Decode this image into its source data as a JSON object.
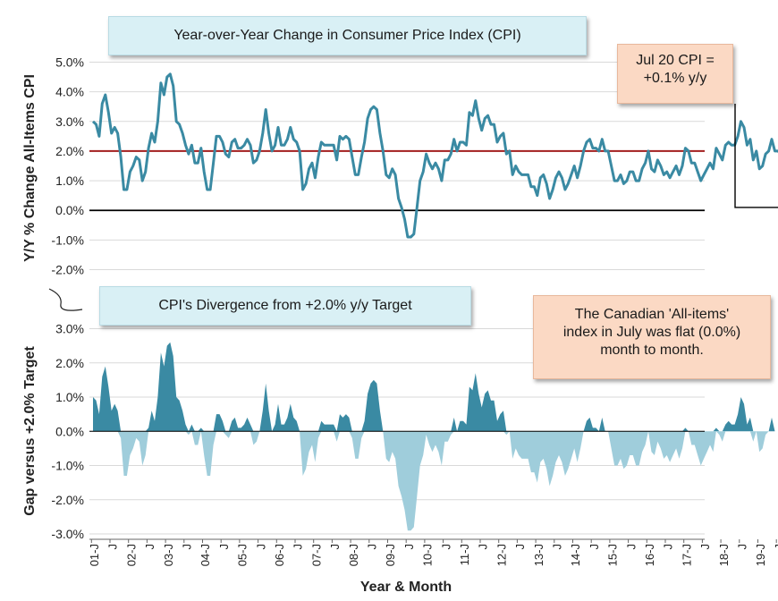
{
  "titles": {
    "top": "Year-over-Year Change in Consumer Price Index (CPI)",
    "bottom": "CPI's Divergence from +2.0% y/y Target"
  },
  "annotations": {
    "jul_line1": "Jul 20 CPI =",
    "jul_line2": "+0.1% y/y",
    "canada_line1": "The Canadian 'All-items'",
    "canada_line2": "index in July was flat (0.0%)",
    "canada_line3": "month to month."
  },
  "colors": {
    "cpi_line": "#3a8aa3",
    "target_line": "#a31f1f",
    "zero_line": "#000000",
    "gap_positive": "#3a8aa3",
    "gap_negative": "#9fcddb",
    "grid": "#d9d9d9"
  },
  "chart_data": [
    {
      "type": "line",
      "title": "Year-over-Year Change in Consumer Price Index (CPI)",
      "ylabel": "Y/Y % Change All-Items CPI",
      "xlabel": "",
      "ylim": [
        -2.0,
        5.0
      ],
      "yticks": [
        "5.0%",
        "4.0%",
        "3.0%",
        "2.0%",
        "1.0%",
        "0.0%",
        "-1.0%",
        "-2.0%"
      ],
      "grid": "horizontal",
      "reference_lines": [
        {
          "value": 2.0,
          "color": "#a31f1f"
        },
        {
          "value": 0.0,
          "color": "#000000"
        }
      ],
      "x_start": "2001-01",
      "x_end": "2020-07",
      "series": [
        {
          "values": [
            3.0,
            2.9,
            2.5,
            3.6,
            3.9,
            3.3,
            2.6,
            2.8,
            2.6,
            1.8,
            0.7,
            0.7,
            1.3,
            1.5,
            1.8,
            1.7,
            1.0,
            1.3,
            2.1,
            2.6,
            2.3,
            3.0,
            4.3,
            3.9,
            4.5,
            4.6,
            4.2,
            3.0,
            2.9,
            2.6,
            2.2,
            1.9,
            2.2,
            1.6,
            1.6,
            2.1,
            1.3,
            0.7,
            0.7,
            1.6,
            2.5,
            2.5,
            2.3,
            1.9,
            1.8,
            2.3,
            2.4,
            2.1,
            2.1,
            2.2,
            2.4,
            2.2,
            1.6,
            1.7,
            2.0,
            2.6,
            3.4,
            2.6,
            2.0,
            2.2,
            2.8,
            2.2,
            2.2,
            2.4,
            2.8,
            2.4,
            2.3,
            2.0,
            0.7,
            0.9,
            1.4,
            1.6,
            1.1,
            1.8,
            2.3,
            2.2,
            2.2,
            2.2,
            2.2,
            1.7,
            2.5,
            2.4,
            2.5,
            2.4,
            1.8,
            1.2,
            1.2,
            1.8,
            2.3,
            3.1,
            3.4,
            3.5,
            3.4,
            2.6,
            2.0,
            1.2,
            1.1,
            1.4,
            1.2,
            0.4,
            0.1,
            -0.3,
            -0.9,
            -0.9,
            -0.8,
            0.1,
            1.0,
            1.3,
            1.9,
            1.6,
            1.4,
            1.6,
            1.4,
            1.0,
            1.7,
            1.7,
            1.9,
            2.4,
            2.0,
            2.3,
            2.3,
            2.2,
            3.3,
            3.2,
            3.7,
            3.1,
            2.7,
            3.1,
            3.2,
            2.9,
            2.9,
            2.3,
            2.5,
            2.6,
            1.9,
            2.0,
            1.2,
            1.5,
            1.3,
            1.2,
            1.2,
            1.2,
            0.8,
            0.8,
            0.5,
            1.1,
            1.2,
            0.9,
            0.4,
            0.7,
            1.1,
            1.3,
            1.1,
            0.7,
            0.9,
            1.2,
            1.5,
            1.1,
            1.5,
            2.0,
            2.3,
            2.4,
            2.1,
            2.1,
            2.0,
            2.4,
            2.0,
            2.0,
            1.5,
            1.0,
            1.0,
            1.2,
            0.9,
            1.0,
            1.3,
            1.3,
            1.0,
            1.0,
            1.4,
            1.6,
            2.0,
            1.4,
            1.3,
            1.7,
            1.5,
            1.2,
            1.3,
            1.1,
            1.3,
            1.5,
            1.2,
            1.5,
            2.1,
            2.0,
            1.6,
            1.6,
            1.3,
            1.0,
            1.2,
            1.4,
            1.6,
            1.4,
            2.1,
            1.9,
            1.7,
            2.2,
            2.3,
            2.2,
            2.2,
            2.5,
            3.0,
            2.8,
            2.2,
            2.4,
            1.7,
            2.0,
            1.4,
            1.5,
            1.9,
            2.0,
            2.4,
            2.0,
            2.0,
            1.9,
            1.9,
            1.9,
            2.2,
            2.2,
            2.4,
            2.2,
            0.9,
            -0.2,
            -0.4,
            0.7,
            0.1
          ]
        }
      ]
    },
    {
      "type": "area",
      "title": "CPI's Divergence from +2.0% y/y Target",
      "ylabel": "Gap versus +2.0% Target",
      "xlabel": "Year & Month",
      "ylim": [
        -3.0,
        3.0
      ],
      "yticks": [
        "3.0%",
        "2.0%",
        "1.0%",
        "0.0%",
        "-1.0%",
        "-2.0%",
        "-3.0%"
      ],
      "grid": "horizontal",
      "derived_from": "CPI y/y minus 2.0",
      "categories": [
        "01-J",
        "02-J",
        "03-J",
        "04-J",
        "05-J",
        "06-J",
        "07-J",
        "08-J",
        "09-J",
        "10-J",
        "11-J",
        "12-J",
        "13-J",
        "14-J",
        "15-J",
        "16-J",
        "17-J",
        "18-J",
        "19-J",
        "20-J"
      ]
    }
  ]
}
